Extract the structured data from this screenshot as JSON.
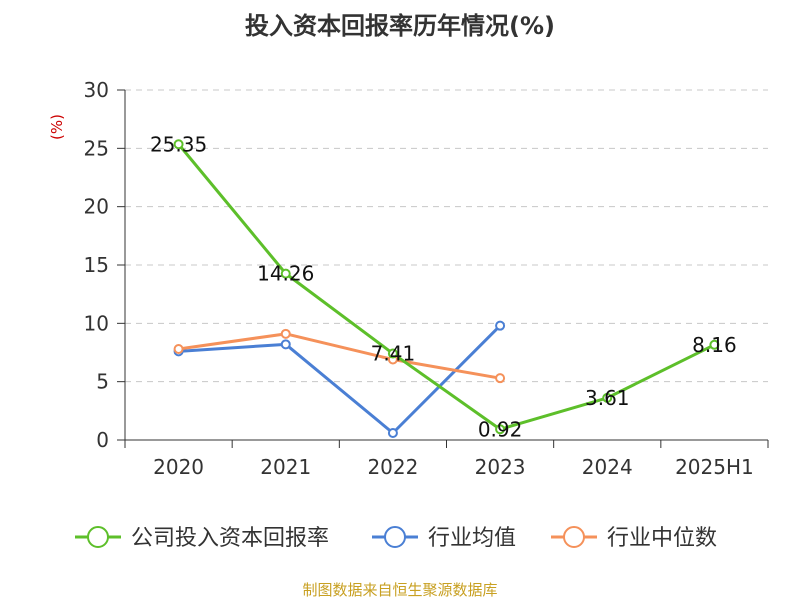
{
  "chart_data": {
    "type": "line",
    "title": "投入资本回报率历年情况(%)",
    "ylabel": "(%)",
    "xlabel": "",
    "categories": [
      "2020",
      "2021",
      "2022",
      "2023",
      "2024",
      "2025H1"
    ],
    "ylim": [
      0,
      30
    ],
    "yticks": [
      0,
      5,
      10,
      15,
      20,
      25,
      30
    ],
    "grid": "horizontal dashed",
    "legend_position": "bottom",
    "series": [
      {
        "name": "公司投入资本回报率",
        "color": "#5dbf2a",
        "values": [
          25.35,
          14.26,
          7.41,
          0.92,
          3.61,
          8.16
        ],
        "show_labels": true
      },
      {
        "name": "行业均值",
        "color": "#4a7fd4",
        "values": [
          7.6,
          8.2,
          0.6,
          9.8,
          null,
          null
        ],
        "show_labels": false
      },
      {
        "name": "行业中位数",
        "color": "#f5915a",
        "values": [
          7.8,
          9.1,
          6.9,
          5.3,
          null,
          null
        ],
        "show_labels": false
      }
    ]
  },
  "source": "制图数据来自恒生聚源数据库"
}
